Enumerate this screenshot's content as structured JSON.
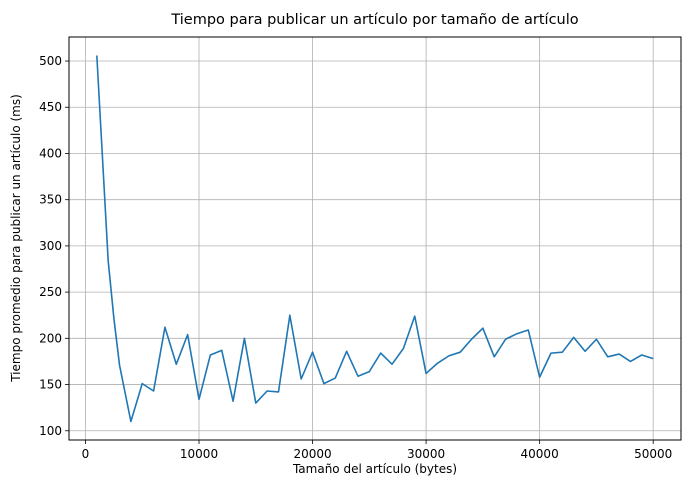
{
  "chart_data": {
    "type": "line",
    "title": "Tiempo para publicar un artículo por tamaño de artículo",
    "xlabel": "Tamaño del artículo (bytes)",
    "ylabel": "Tiempo promedio para publicar un artículo (ms)",
    "xlim": [
      -1450,
      52450
    ],
    "ylim": [
      90,
      526
    ],
    "x_ticks": [
      0,
      10000,
      20000,
      30000,
      40000,
      50000
    ],
    "y_ticks": [
      100,
      150,
      200,
      250,
      300,
      350,
      400,
      450,
      500
    ],
    "grid": true,
    "series_color": "#1f77b4",
    "x": [
      1000,
      2000,
      2500,
      3000,
      4000,
      5000,
      6000,
      7000,
      8000,
      9000,
      10000,
      11000,
      12000,
      13000,
      14000,
      15000,
      16000,
      17000,
      18000,
      19000,
      20000,
      21000,
      22000,
      23000,
      24000,
      25000,
      26000,
      27000,
      28000,
      29000,
      30000,
      31000,
      32000,
      33000,
      34000,
      35000,
      36000,
      37000,
      38000,
      39000,
      40000,
      41000,
      42000,
      43000,
      44000,
      45000,
      46000,
      47000,
      48000,
      49000,
      50000
    ],
    "series": [
      {
        "values": [
          506,
          284,
          222,
          171,
          110,
          151,
          143,
          212,
          172,
          204,
          134,
          182,
          187,
          132,
          200,
          130,
          143,
          142,
          225,
          156,
          185,
          151,
          157,
          186,
          159,
          164,
          184,
          172,
          189,
          224,
          162,
          173,
          181,
          185,
          199,
          211,
          180,
          199,
          205,
          209,
          158,
          184,
          185,
          201,
          186,
          199,
          180,
          183,
          175,
          182,
          178
        ]
      }
    ]
  }
}
